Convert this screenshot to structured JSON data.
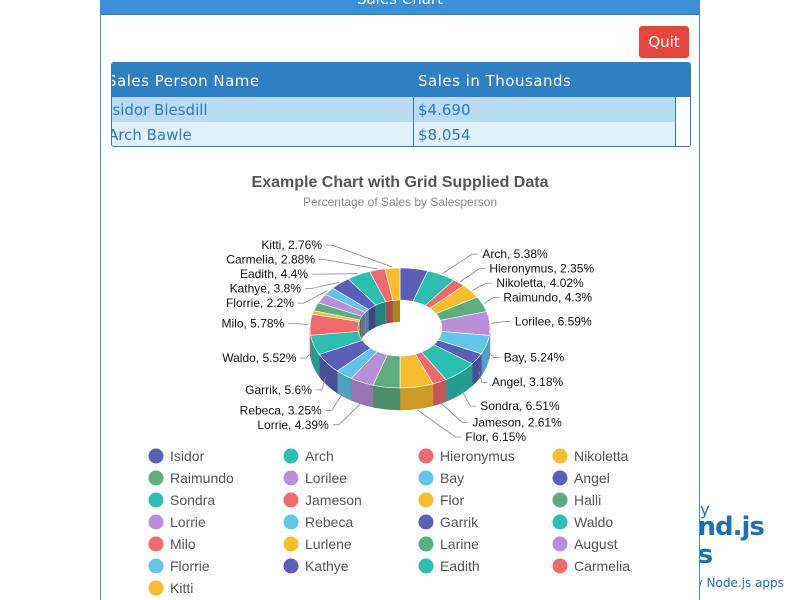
{
  "window": {
    "title": "Sales Chart"
  },
  "toolbar": {
    "quit_label": "Quit"
  },
  "grid": {
    "columns": [
      "Sales Person Name",
      "Sales in Thousands"
    ],
    "rows": [
      {
        "name": "Isidor  Blesdill",
        "sales": "$4.690"
      },
      {
        "name": "Arch  Bawle",
        "sales": "$8.054"
      }
    ]
  },
  "branding": {
    "line1": "by",
    "line2": "und.js",
    "line3": "es",
    "line4": "by Node.js apps"
  },
  "colors": {
    "accent": "#3b8fd6",
    "quit": "#e8453c"
  },
  "chart_data": {
    "type": "pie",
    "variant": "3d-donut",
    "title": "Example Chart with Grid Supplied Data",
    "subtitle": "Percentage of Sales by Salesperson",
    "legend_position": "bottom",
    "slices": [
      {
        "name": "Isidor",
        "value": 5.14,
        "color": "#5c5fb8"
      },
      {
        "name": "Arch",
        "value": 5.38,
        "color": "#2bbfb0"
      },
      {
        "name": "Hieronymus",
        "value": 2.35,
        "color": "#ef6b6b"
      },
      {
        "name": "Nikoletta",
        "value": 4.02,
        "color": "#f7bd2e"
      },
      {
        "name": "Raimundo",
        "value": 4.3,
        "color": "#5cad80"
      },
      {
        "name": "Lorilee",
        "value": 6.59,
        "color": "#b88fd8"
      },
      {
        "name": "Bay",
        "value": 5.24,
        "color": "#5fc6ea"
      },
      {
        "name": "Angel",
        "value": 3.18,
        "color": "#5c5fb8"
      },
      {
        "name": "Sondra",
        "value": 6.51,
        "color": "#2bbfb0"
      },
      {
        "name": "Jameson",
        "value": 2.61,
        "color": "#ef6b6b"
      },
      {
        "name": "Flor",
        "value": 6.15,
        "color": "#f7bd2e"
      },
      {
        "name": "Halli",
        "value": 5.0,
        "color": "#5cad80"
      },
      {
        "name": "Lorrie",
        "value": 4.39,
        "color": "#b88fd8"
      },
      {
        "name": "Rebeca",
        "value": 3.25,
        "color": "#5fc6ea"
      },
      {
        "name": "Garrik",
        "value": 5.6,
        "color": "#5c5fb8"
      },
      {
        "name": "Waldo",
        "value": 5.52,
        "color": "#2bbfb0"
      },
      {
        "name": "Milo",
        "value": 5.78,
        "color": "#ef6b6b"
      },
      {
        "name": "Lurlene",
        "value": 1.0,
        "color": "#f7bd2e"
      },
      {
        "name": "Larine",
        "value": 2.3,
        "color": "#5cad80"
      },
      {
        "name": "August",
        "value": 2.6,
        "color": "#b88fd8"
      },
      {
        "name": "Florrie",
        "value": 2.2,
        "color": "#5fc6ea"
      },
      {
        "name": "Kathye",
        "value": 3.8,
        "color": "#5c5fb8"
      },
      {
        "name": "Eadith",
        "value": 4.4,
        "color": "#2bbfb0"
      },
      {
        "name": "Carmelia",
        "value": 2.88,
        "color": "#ef6b6b"
      },
      {
        "name": "Kitti",
        "value": 2.76,
        "color": "#f7bd2e"
      }
    ],
    "labels": [
      {
        "name": "Lorilee",
        "text": "Lorilee, 6.59%"
      },
      {
        "name": "Raimundo",
        "text": "Raimundo, 4.3%"
      },
      {
        "name": "Nikoletta",
        "text": "Nikoletta, 4.02%"
      },
      {
        "name": "Hieronymus",
        "text": "Hieronymus, 2.35%"
      },
      {
        "name": "Arch",
        "text": "Arch, 5.38%"
      },
      {
        "name": "Kitti",
        "text": "Kitti, 2.76%"
      },
      {
        "name": "Carmelia",
        "text": "Carmelia, 2.88%"
      },
      {
        "name": "Eadith",
        "text": "Eadith, 4.4%"
      },
      {
        "name": "Kathye",
        "text": "Kathye, 3.8%"
      },
      {
        "name": "Florrie",
        "text": "Florrie, 2.2%"
      },
      {
        "name": "Milo",
        "text": "Milo, 5.78%"
      },
      {
        "name": "Waldo",
        "text": "Waldo, 5.52%"
      },
      {
        "name": "Garrik",
        "text": "Garrik, 5.6%"
      },
      {
        "name": "Rebeca",
        "text": "Rebeca, 3.25%"
      },
      {
        "name": "Lorrie",
        "text": "Lorrie, 4.39%"
      },
      {
        "name": "Flor",
        "text": "Flor, 6.15%"
      },
      {
        "name": "Jameson",
        "text": "Jameson, 2.61%"
      },
      {
        "name": "Sondra",
        "text": "Sondra, 6.51%"
      },
      {
        "name": "Angel",
        "text": "Angel, 3.18%"
      },
      {
        "name": "Bay",
        "text": "Bay, 5.24%"
      }
    ]
  }
}
